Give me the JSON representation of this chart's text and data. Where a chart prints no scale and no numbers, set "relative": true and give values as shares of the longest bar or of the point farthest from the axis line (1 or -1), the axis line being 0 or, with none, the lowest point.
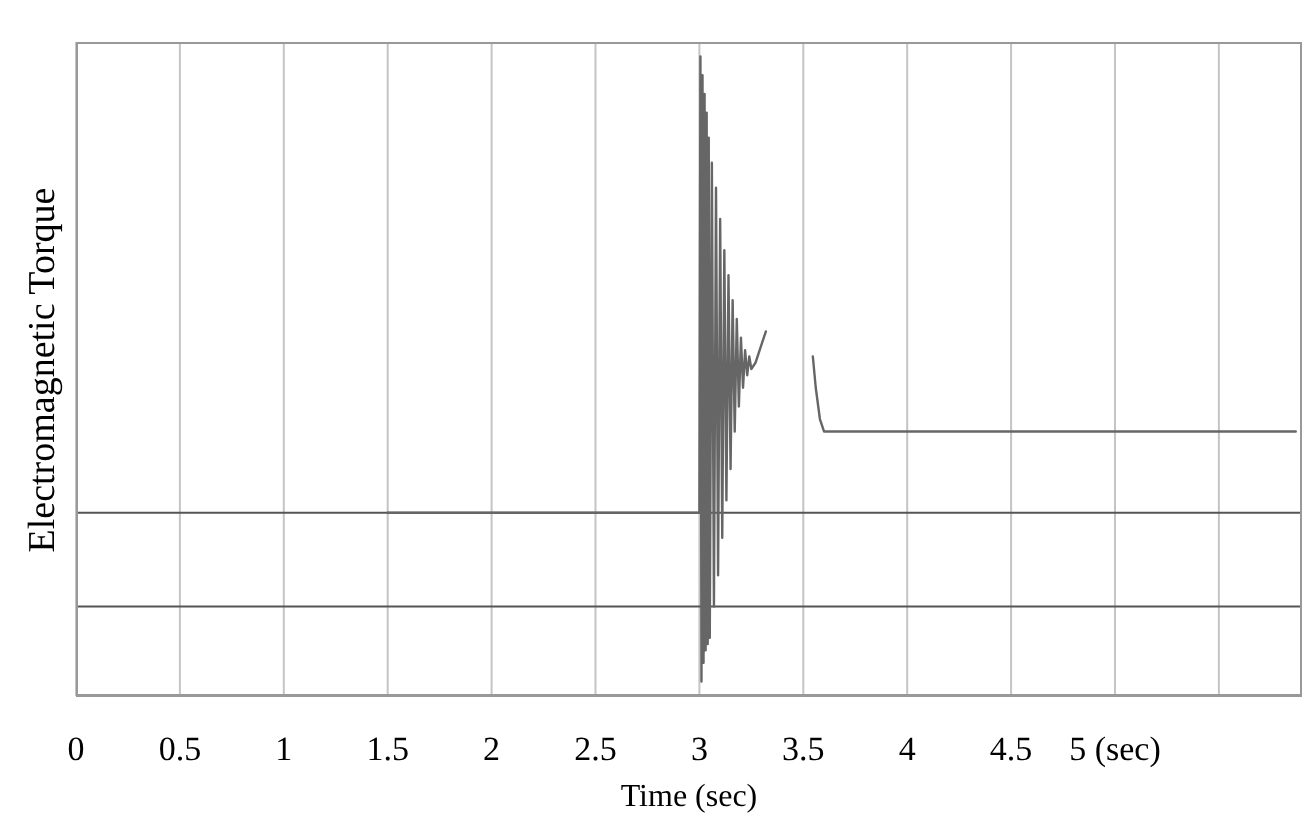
{
  "chart_data": {
    "type": "line",
    "relative": true,
    "xlabel": "Time (sec)",
    "ylabel": "Electromagnetic Torque",
    "xlim": [
      0,
      5.9
    ],
    "xticks": [
      0,
      0.5,
      1,
      1.5,
      2,
      2.5,
      3,
      3.5,
      4,
      4.5,
      {
        "value": 5,
        "label": "5 (sec)"
      },
      {
        "value": 5.5,
        "label": null
      }
    ],
    "grid": "x",
    "ref_lines": [
      {
        "axis": "y",
        "value": 0.27,
        "color": "#555555"
      },
      {
        "axis": "y",
        "value": 0.12,
        "color": "#555555"
      }
    ],
    "series": [
      {
        "color": "#666666",
        "x": [
          1.5,
          3.0,
          3.005,
          3.01,
          3.015,
          3.02,
          3.025,
          3.03,
          3.035,
          3.04,
          3.045,
          3.05,
          3.06,
          3.07,
          3.08,
          3.09,
          3.1,
          3.11,
          3.12,
          3.13,
          3.14,
          3.15,
          3.16,
          3.17,
          3.18,
          3.19,
          3.2,
          3.21,
          3.22,
          3.23,
          3.24,
          3.25,
          3.27,
          3.3,
          3.32,
          3.43,
          3.546,
          3.56,
          3.58,
          3.6,
          5.87
        ],
        "values": [
          0.27,
          0.27,
          1.0,
          0.0,
          0.97,
          0.03,
          0.94,
          0.05,
          0.91,
          0.06,
          0.87,
          0.07,
          0.83,
          0.12,
          0.79,
          0.17,
          0.74,
          0.23,
          0.69,
          0.29,
          0.65,
          0.34,
          0.61,
          0.4,
          0.58,
          0.44,
          0.55,
          0.47,
          0.53,
          0.49,
          0.52,
          0.5,
          0.51,
          0.54,
          0.56,
          null,
          0.52,
          0.47,
          0.42,
          0.4,
          0.4
        ]
      }
    ]
  }
}
